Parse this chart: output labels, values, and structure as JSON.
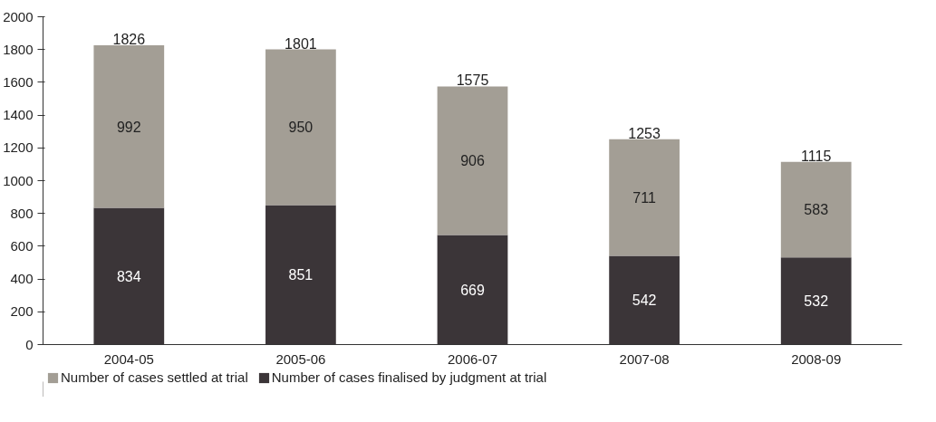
{
  "chart_data": {
    "type": "bar",
    "stacked": true,
    "categories": [
      "2004-05",
      "2005-06",
      "2006-07",
      "2007-08",
      "2008-09"
    ],
    "series": [
      {
        "name": "Number of cases finalised by judgment at trial",
        "color": "#3b3538",
        "values": [
          834,
          851,
          669,
          542,
          532
        ]
      },
      {
        "name": "Number of cases settled at trial",
        "color": "#a39e95",
        "values": [
          992,
          950,
          906,
          711,
          583
        ]
      }
    ],
    "totals": [
      "1826",
      "1801",
      "1575",
      "1253",
      "1115"
    ],
    "data_labels": true,
    "ylim": [
      0,
      2000
    ],
    "yticks": [
      0,
      200,
      400,
      600,
      800,
      1000,
      1200,
      1400,
      1600,
      1800,
      2000
    ],
    "grid": false,
    "legend": "bottom"
  }
}
